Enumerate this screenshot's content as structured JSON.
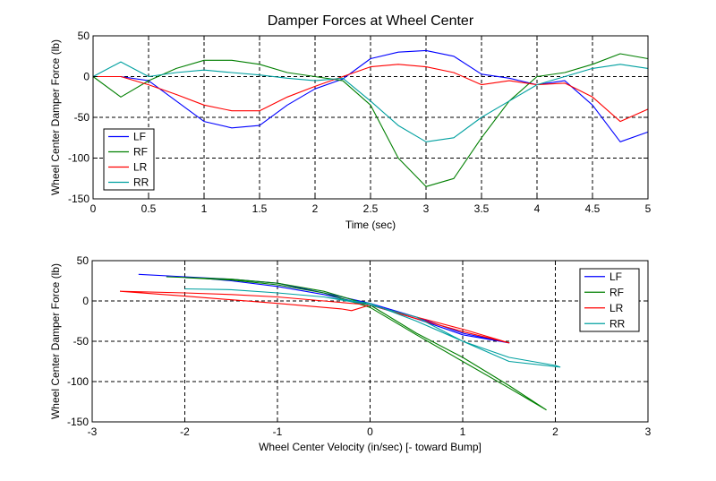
{
  "chart_data": [
    {
      "type": "line",
      "title": "Damper Forces at Wheel Center",
      "xlabel": "Time (sec)",
      "ylabel": "Wheel Center Damper Force (lb)",
      "xlim": [
        0,
        5
      ],
      "ylim": [
        -150,
        50
      ],
      "xticks": [
        0,
        0.5,
        1,
        1.5,
        2,
        2.5,
        3,
        3.5,
        4,
        4.5,
        5
      ],
      "yticks": [
        -150,
        -100,
        -50,
        0,
        50
      ],
      "xtick_labels": [
        "0",
        "0.5",
        "1",
        "1.5",
        "2",
        "2.5",
        "3",
        "3.5",
        "4",
        "4.5",
        "5"
      ],
      "ytick_labels": [
        "-150",
        "-100",
        "-50",
        "0",
        "50"
      ],
      "grid": true,
      "legend_position": "bottom-left",
      "series": [
        {
          "name": "LF",
          "color": "#0000ff",
          "x": [
            0,
            0.25,
            0.5,
            0.75,
            1,
            1.25,
            1.5,
            1.75,
            2,
            2.25,
            2.5,
            2.75,
            3,
            3.25,
            3.5,
            3.75,
            4,
            4.25,
            4.5,
            4.75,
            5
          ],
          "y": [
            0,
            0,
            -5,
            -30,
            -55,
            -63,
            -60,
            -35,
            -15,
            -3,
            22,
            30,
            32,
            25,
            3,
            -2,
            -10,
            -5,
            -35,
            -80,
            -68
          ]
        },
        {
          "name": "RF",
          "color": "#007f00",
          "x": [
            0,
            0.25,
            0.5,
            0.75,
            1,
            1.25,
            1.5,
            1.75,
            2,
            2.25,
            2.5,
            2.75,
            3,
            3.25,
            3.5,
            3.75,
            4,
            4.25,
            4.5,
            4.75,
            5
          ],
          "y": [
            0,
            -25,
            -5,
            10,
            20,
            20,
            15,
            5,
            0,
            -5,
            -35,
            -100,
            -135,
            -125,
            -75,
            -30,
            0,
            5,
            15,
            28,
            22
          ]
        },
        {
          "name": "LR",
          "color": "#ff0000",
          "x": [
            0,
            0.25,
            0.5,
            0.75,
            1,
            1.25,
            1.5,
            1.75,
            2,
            2.25,
            2.5,
            2.75,
            3,
            3.25,
            3.5,
            3.75,
            4,
            4.25,
            4.5,
            4.75,
            5
          ],
          "y": [
            0,
            0,
            -10,
            -22,
            -35,
            -42,
            -42,
            -25,
            -12,
            0,
            12,
            15,
            12,
            5,
            -10,
            -5,
            -10,
            -8,
            -25,
            -55,
            -40
          ]
        },
        {
          "name": "RR",
          "color": "#00a0a0",
          "x": [
            0,
            0.25,
            0.5,
            0.75,
            1,
            1.25,
            1.5,
            1.75,
            2,
            2.25,
            2.5,
            2.75,
            3,
            3.25,
            3.5,
            3.75,
            4,
            4.25,
            4.5,
            4.75,
            5
          ],
          "y": [
            0,
            18,
            0,
            5,
            8,
            5,
            2,
            -2,
            -5,
            -2,
            -30,
            -60,
            -80,
            -75,
            -50,
            -30,
            -10,
            0,
            10,
            15,
            10
          ]
        }
      ]
    },
    {
      "type": "scatter",
      "title": "",
      "xlabel": "Wheel Center Velocity (in/sec)  [- toward Bump]",
      "ylabel": "Wheel Center Damper Force (lb)",
      "xlim": [
        -3,
        3
      ],
      "ylim": [
        -150,
        50
      ],
      "xticks": [
        -3,
        -2,
        -1,
        0,
        1,
        2,
        3
      ],
      "yticks": [
        -150,
        -100,
        -50,
        0,
        50
      ],
      "xtick_labels": [
        "-3",
        "-2",
        "-1",
        "0",
        "1",
        "2",
        "3"
      ],
      "ytick_labels": [
        "-150",
        "-100",
        "-50",
        "0",
        "50"
      ],
      "grid": true,
      "legend_position": "top-right",
      "series": [
        {
          "name": "LF",
          "color": "#0000ff",
          "x": [
            -2.5,
            -2.0,
            -1.5,
            -1.0,
            -0.5,
            0,
            0.5,
            1.0,
            1.5,
            1.0,
            0.5,
            0,
            -0.5,
            -1.0,
            -1.5,
            -2.0
          ],
          "y": [
            33,
            30,
            27,
            22,
            10,
            -3,
            -20,
            -40,
            -52,
            -42,
            -22,
            -5,
            8,
            18,
            25,
            30
          ]
        },
        {
          "name": "RF",
          "color": "#007f00",
          "x": [
            -2.2,
            -1.5,
            -1.0,
            -0.5,
            0,
            0.5,
            1.0,
            1.5,
            1.9,
            1.5,
            1.0,
            0.5,
            0,
            -0.5,
            -1.0,
            -1.5,
            -2.0
          ],
          "y": [
            30,
            27,
            22,
            12,
            -5,
            -40,
            -70,
            -105,
            -135,
            -108,
            -75,
            -42,
            -8,
            10,
            20,
            26,
            29
          ]
        },
        {
          "name": "LR",
          "color": "#ff0000",
          "x": [
            -2.7,
            -2.0,
            -1.0,
            -0.3,
            -0.2,
            0,
            0.5,
            1.0,
            1.5,
            1.0,
            0.5,
            0,
            -0.5,
            -1.0,
            -1.5,
            -2.0,
            -2.7
          ],
          "y": [
            12,
            6,
            -3,
            -10,
            -12,
            -5,
            -20,
            -35,
            -52,
            -38,
            -22,
            -5,
            0,
            5,
            8,
            10,
            12
          ]
        },
        {
          "name": "RR",
          "color": "#00a0a0",
          "x": [
            -2.0,
            -1.5,
            -1.0,
            -0.5,
            0,
            0.5,
            1.0,
            1.5,
            2.0,
            2.05,
            1.5,
            1.0,
            0.5,
            0,
            -0.5,
            -1.0,
            -1.5,
            -2.0
          ],
          "y": [
            15,
            14,
            10,
            5,
            -3,
            -25,
            -50,
            -70,
            -80,
            -82,
            -75,
            -50,
            -20,
            -5,
            5,
            10,
            14,
            15
          ]
        }
      ]
    }
  ]
}
